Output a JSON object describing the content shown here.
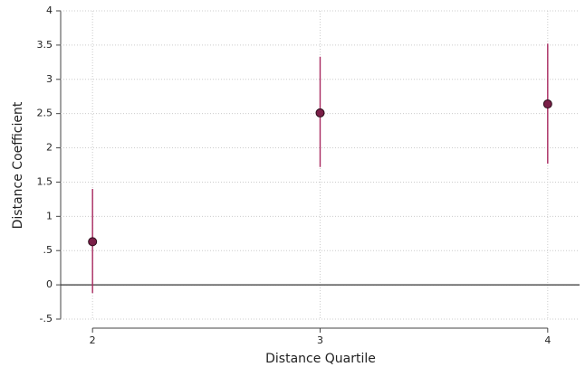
{
  "chart_data": {
    "type": "errorbar",
    "x_label": "Distance Quartile",
    "y_label": "Distance Coefficient",
    "x": [
      2,
      3,
      4
    ],
    "values": [
      0.63,
      2.51,
      2.64
    ],
    "lower": [
      -0.12,
      1.72,
      1.77
    ],
    "upper": [
      1.4,
      3.33,
      3.52
    ],
    "color": "#a8295f",
    "marker_color": "#7a1f48",
    "reference_line": 0,
    "xlim": [
      1.86,
      4.14
    ],
    "xticks": [
      2,
      3,
      4
    ],
    "ylim": [
      -0.5,
      4
    ],
    "yticks": [
      {
        "value": -0.5,
        "label": "-.5"
      },
      0,
      {
        "value": 0.5,
        "label": ".5"
      },
      1,
      1.5,
      2,
      2.5,
      3,
      3.5,
      4
    ],
    "grid": true
  }
}
